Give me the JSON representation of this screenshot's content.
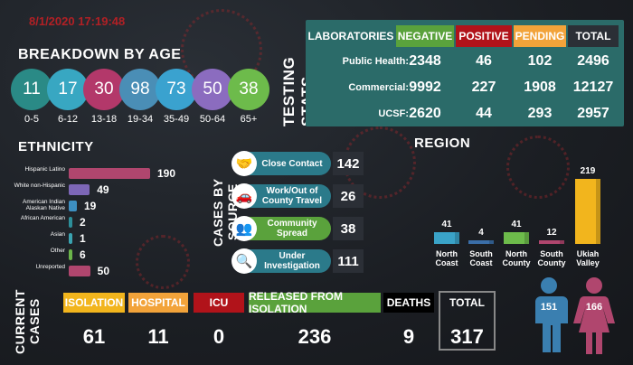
{
  "stamp_datetime": "8/1/2020 17:19:48",
  "age": {
    "title": "BREAKDOWN BY AGE",
    "groups": [
      {
        "value": "11",
        "label": "0-5",
        "color": "#2a8a86"
      },
      {
        "value": "17",
        "label": "6-12",
        "color": "#38a7c2"
      },
      {
        "value": "30",
        "label": "13-18",
        "color": "#b3386a"
      },
      {
        "value": "98",
        "label": "19-34",
        "color": "#4a8eb6"
      },
      {
        "value": "73",
        "label": "35-49",
        "color": "#3aa2cf"
      },
      {
        "value": "50",
        "label": "50-64",
        "color": "#8b6cbf"
      },
      {
        "value": "38",
        "label": "65+",
        "color": "#6dbb4b"
      }
    ]
  },
  "testing": {
    "title": "TESTING STATS",
    "headers": {
      "labs": "LABORATORIES",
      "negative": "NEGATIVE",
      "positive": "POSITIVE",
      "pending": "PENDING",
      "total": "TOTAL"
    },
    "rows": [
      {
        "label": "Public Health:",
        "negative": "2348",
        "positive": "46",
        "pending": "102",
        "total": "2496"
      },
      {
        "label": "Commercial:",
        "negative": "9992",
        "positive": "227",
        "pending": "1908",
        "total": "12127"
      },
      {
        "label": "UCSF:",
        "negative": "2620",
        "positive": "44",
        "pending": "293",
        "total": "2957"
      }
    ]
  },
  "ethnicity": {
    "title": "ETHNICITY",
    "items": [
      {
        "label": "Hispanic Latino",
        "value": "190",
        "color": "#b0466e"
      },
      {
        "label": "White non-Hispanic",
        "value": "49",
        "color": "#7d67b7"
      },
      {
        "label": "American Indian Alaskan Native",
        "value": "19",
        "color": "#3d8fc1"
      },
      {
        "label": "African American",
        "value": "2",
        "color": "#2d8f9a"
      },
      {
        "label": "Asian",
        "value": "1",
        "color": "#3aa3b0"
      },
      {
        "label": "Other",
        "value": "6",
        "color": "#6bb44a"
      },
      {
        "label": "Unreported",
        "value": "50",
        "color": "#b0466e"
      }
    ]
  },
  "source": {
    "title": "CASES BY SOURCE",
    "items": [
      {
        "label": "Close Contact",
        "value": "142",
        "color": "#2b7a8a",
        "icon": "handshake-icon"
      },
      {
        "label": "Work/Out of County Travel",
        "value": "26",
        "color": "#2b7a8a",
        "icon": "car-icon"
      },
      {
        "label": "Community Spread",
        "value": "38",
        "color": "#5aa23c",
        "icon": "community-icon"
      },
      {
        "label": "Under Investigation",
        "value": "111",
        "color": "#2b7a8a",
        "icon": "magnifier-icon"
      }
    ]
  },
  "region": {
    "title": "REGION",
    "items": [
      {
        "label": "North Coast",
        "value": "41",
        "color": "#3aa3c8"
      },
      {
        "label": "South Coast",
        "value": "4",
        "color": "#3a6ea8"
      },
      {
        "label": "North County",
        "value": "41",
        "color": "#6dbb4b"
      },
      {
        "label": "South County",
        "value": "12",
        "color": "#b0466e"
      },
      {
        "label": "Ukiah Valley",
        "value": "219",
        "color": "#f2b51d"
      }
    ]
  },
  "current": {
    "title_1": "CURRENT",
    "title_2": "CASES",
    "isolation_label": "ISOLATION",
    "isolation_value": "61",
    "hospital_label": "HOSPITAL",
    "hospital_value": "11",
    "icu_label": "ICU",
    "icu_value": "0",
    "released_label": "RELEASED FROM ISOLATION",
    "released_value": "236",
    "deaths_label": "DEATHS",
    "deaths_value": "9",
    "total_label": "TOTAL",
    "total_value": "317"
  },
  "gender": {
    "male_value": "151",
    "male_color": "#3a7fb0",
    "female_value": "166",
    "female_color": "#b0466e"
  }
}
